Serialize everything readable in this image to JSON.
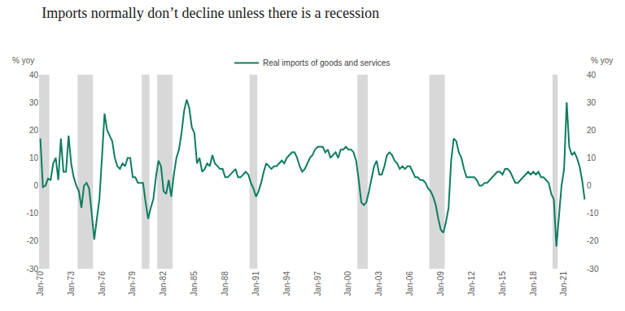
{
  "chart_data": {
    "type": "line",
    "title": "Imports normally don’t decline unless there is a recession",
    "y_label": "% yoy",
    "y2_label": "% yoy",
    "categories": [
      "Jan-70",
      null,
      null,
      null,
      null,
      null,
      null,
      null,
      null,
      null,
      null,
      null,
      "Jan-73",
      null,
      null,
      null,
      null,
      null,
      null,
      null,
      null,
      null,
      null,
      null,
      "Jan-76",
      null,
      null,
      null,
      null,
      null,
      null,
      null,
      null,
      null,
      null,
      null,
      "Jan-79",
      null,
      null,
      null,
      null,
      null,
      null,
      null,
      null,
      null,
      null,
      null,
      "Jan-82",
      null,
      null,
      null,
      null,
      null,
      null,
      null,
      null,
      null,
      null,
      null,
      "Jan-85",
      null,
      null,
      null,
      null,
      null,
      null,
      null,
      null,
      null,
      null,
      null,
      "Jan-88",
      null,
      null,
      null,
      null,
      null,
      null,
      null,
      null,
      null,
      null,
      null,
      "Jan-91",
      null,
      null,
      null,
      null,
      null,
      null,
      null,
      null,
      null,
      null,
      null,
      "Jan-94",
      null,
      null,
      null,
      null,
      null,
      null,
      null,
      null,
      null,
      null,
      null,
      "Jan-97",
      null,
      null,
      null,
      null,
      null,
      null,
      null,
      null,
      null,
      null,
      null,
      "Jan-00",
      null,
      null,
      null,
      null,
      null,
      null,
      null,
      null,
      null,
      null,
      null,
      "Jan-03",
      null,
      null,
      null,
      null,
      null,
      null,
      null,
      null,
      null,
      null,
      null,
      "Jan-06",
      null,
      null,
      null,
      null,
      null,
      null,
      null,
      null,
      null,
      null,
      null,
      "Jan-09",
      null,
      null,
      null,
      null,
      null,
      null,
      null,
      null,
      null,
      null,
      null,
      "Jan-12",
      null,
      null,
      null,
      null,
      null,
      null,
      null,
      null,
      null,
      null,
      null,
      "Jan-15",
      null,
      null,
      null,
      null,
      null,
      null,
      null,
      null,
      null,
      null,
      null,
      "Jan-18",
      null,
      null,
      null,
      null,
      null,
      null,
      null,
      null,
      null,
      null,
      null,
      "Jan-21",
      null,
      null,
      null,
      null,
      null,
      null,
      null,
      null
    ],
    "series": [
      {
        "name": "Real imports of goods and services",
        "color": "#0e7c61",
        "values": [
          17,
          -0.5,
          0,
          2.5,
          2,
          8,
          10,
          2,
          17,
          5,
          5,
          18,
          8,
          3,
          0,
          -2,
          -8,
          0,
          1,
          -1,
          -10,
          -19.5,
          -12,
          -5,
          10,
          26,
          20,
          18,
          16,
          10,
          7,
          6,
          8,
          7,
          10,
          10,
          3,
          3,
          1,
          1,
          1,
          -6,
          -12,
          -8,
          -5,
          3,
          9,
          7,
          -2,
          -3,
          2,
          -4,
          4,
          10,
          13,
          19,
          27,
          31,
          28,
          21,
          19,
          8,
          10,
          5,
          6,
          8,
          7,
          11,
          8,
          7,
          6,
          6,
          3,
          3,
          4,
          5,
          6,
          3,
          3,
          4,
          5,
          4,
          1,
          -1,
          -4,
          -2,
          1,
          5,
          8,
          7,
          6,
          7,
          7,
          8,
          9,
          8,
          10,
          11,
          12,
          12,
          10,
          7,
          5,
          6,
          8,
          10,
          11,
          13,
          14,
          14,
          14,
          12,
          13,
          10,
          11,
          12,
          10,
          13,
          13,
          14,
          13,
          13,
          12,
          9,
          2,
          -6,
          -7,
          -6,
          -2,
          3,
          7,
          9,
          4,
          4,
          7,
          11,
          12,
          11,
          9,
          8,
          6,
          7,
          6,
          7,
          7,
          5,
          3,
          3,
          2,
          2,
          1,
          -1,
          -2,
          -4,
          -7,
          -12,
          -16,
          -17,
          -13,
          -8,
          9,
          17,
          16,
          12,
          10,
          6,
          3,
          3,
          3,
          3,
          2,
          0,
          0,
          1,
          1,
          2,
          3,
          4,
          5,
          5,
          4,
          6,
          6,
          5,
          3,
          1,
          1,
          2,
          3,
          4,
          5,
          4,
          5,
          4,
          5,
          3,
          3,
          2,
          1,
          -3,
          -5,
          -22,
          -10,
          0,
          6,
          30,
          14,
          11,
          12,
          10,
          7,
          2,
          -5
        ]
      }
    ],
    "recessions": [
      [
        0,
        3
      ],
      [
        15,
        20
      ],
      [
        40,
        42
      ],
      [
        46,
        51
      ],
      [
        82,
        84
      ],
      [
        124,
        127
      ],
      [
        152,
        157
      ],
      [
        200,
        201
      ]
    ],
    "ylim": [
      -30,
      40
    ],
    "yticks": [
      -30,
      -20,
      -10,
      0,
      10,
      20,
      30,
      40
    ],
    "y2lim": [
      -30,
      40
    ],
    "y2ticks": [
      -30,
      -20,
      -10,
      0,
      10,
      20,
      30,
      40
    ],
    "grid": false,
    "legend": "top"
  }
}
